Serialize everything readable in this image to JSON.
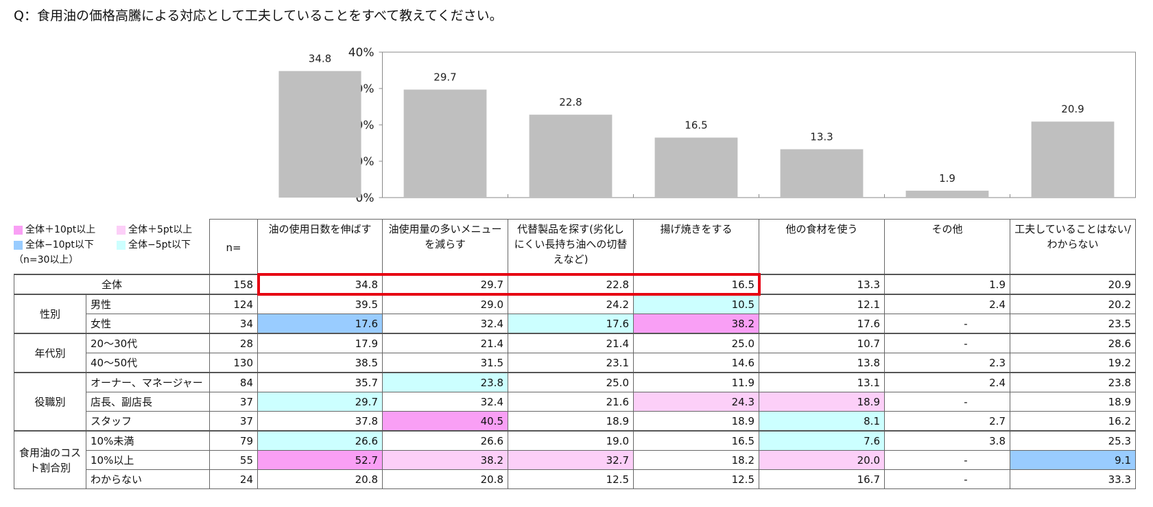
{
  "question": "Q：食用油の価格高騰による対応として工夫していることをすべて教えてください。",
  "chart_data": {
    "type": "bar",
    "categories": [
      "油の使用日数を伸ばす",
      "油使用量の多いメニューを減らす",
      "代替製品を探す(劣化しにくい長持ち油への切替えなど)",
      "揚げ焼きをする",
      "他の食材を使う",
      "その他",
      "工夫していることはない/わからない"
    ],
    "values": [
      34.8,
      29.7,
      22.8,
      16.5,
      13.3,
      1.9,
      20.9
    ],
    "value_labels": [
      "34.8",
      "29.7",
      "22.8",
      "16.5",
      "13.3",
      "1.9",
      "20.9"
    ],
    "yticks": [
      "0%",
      "10%",
      "20%",
      "30%",
      "40%"
    ],
    "ylim": [
      0,
      40
    ],
    "bar_color": "#bfbfbf"
  },
  "legend": {
    "items": [
      {
        "label": "全体＋10pt以上",
        "color": "#f99ff5"
      },
      {
        "label": "全体＋5pt以上",
        "color": "#fccff8"
      },
      {
        "label": "全体−10pt以下",
        "color": "#99ccff"
      },
      {
        "label": "全体−5pt以下",
        "color": "#ccffff"
      }
    ],
    "note": "（n=30以上）"
  },
  "table": {
    "n_header": "n=",
    "headers": [
      "油の使用日数を伸ばす",
      "油使用量の多いメニューを減らす",
      "代替製品を探す(劣化しにくい長持ち油への切替えなど)",
      "揚げ焼きをする",
      "他の食材を使う",
      "その他",
      "工夫していることはない/わからない"
    ],
    "total": {
      "label": "全体",
      "n": "158",
      "values": [
        "34.8",
        "29.7",
        "22.8",
        "16.5",
        "13.3",
        "1.9",
        "20.9"
      ]
    },
    "groups": [
      {
        "label": "性別",
        "rows": [
          {
            "label": "男性",
            "n": "124",
            "values": [
              "39.5",
              "29.0",
              "24.2",
              "10.5",
              "12.1",
              "2.4",
              "20.2"
            ],
            "hl": [
              "",
              "",
              "",
              "m5",
              "",
              "",
              ""
            ]
          },
          {
            "label": "女性",
            "n": "34",
            "values": [
              "17.6",
              "32.4",
              "17.6",
              "38.2",
              "17.6",
              "-",
              "23.5"
            ],
            "hl": [
              "m10",
              "",
              "m5",
              "p10",
              "",
              "",
              ""
            ]
          }
        ]
      },
      {
        "label": "年代別",
        "rows": [
          {
            "label": "20〜30代",
            "n": "28",
            "values": [
              "17.9",
              "21.4",
              "21.4",
              "25.0",
              "10.7",
              "-",
              "28.6"
            ],
            "hl": [
              "",
              "",
              "",
              "",
              "",
              "",
              ""
            ]
          },
          {
            "label": "40〜50代",
            "n": "130",
            "values": [
              "38.5",
              "31.5",
              "23.1",
              "14.6",
              "13.8",
              "2.3",
              "19.2"
            ],
            "hl": [
              "",
              "",
              "",
              "",
              "",
              "",
              ""
            ]
          }
        ]
      },
      {
        "label": "役職別",
        "rows": [
          {
            "label": "オーナー、マネージャー",
            "n": "84",
            "values": [
              "35.7",
              "23.8",
              "25.0",
              "11.9",
              "13.1",
              "2.4",
              "23.8"
            ],
            "hl": [
              "",
              "m5",
              "",
              "",
              "",
              "",
              ""
            ]
          },
          {
            "label": "店長、副店長",
            "n": "37",
            "values": [
              "29.7",
              "32.4",
              "21.6",
              "24.3",
              "18.9",
              "-",
              "18.9"
            ],
            "hl": [
              "m5",
              "",
              "",
              "p5",
              "p5",
              "",
              ""
            ]
          },
          {
            "label": "スタッフ",
            "n": "37",
            "values": [
              "37.8",
              "40.5",
              "18.9",
              "18.9",
              "8.1",
              "2.7",
              "16.2"
            ],
            "hl": [
              "",
              "p10",
              "",
              "",
              "m5",
              "",
              ""
            ]
          }
        ]
      },
      {
        "label": "食用油のコスト割合別",
        "rows": [
          {
            "label": "10%未満",
            "n": "79",
            "values": [
              "26.6",
              "26.6",
              "19.0",
              "16.5",
              "7.6",
              "3.8",
              "25.3"
            ],
            "hl": [
              "m5",
              "",
              "",
              "",
              "m5",
              "",
              ""
            ]
          },
          {
            "label": "10%以上",
            "n": "55",
            "values": [
              "52.7",
              "38.2",
              "32.7",
              "18.2",
              "20.0",
              "-",
              "9.1"
            ],
            "hl": [
              "p10",
              "p5",
              "p5",
              "",
              "p5",
              "",
              "m10"
            ]
          },
          {
            "label": "わからない",
            "n": "24",
            "values": [
              "20.8",
              "20.8",
              "12.5",
              "12.5",
              "16.7",
              "-",
              "33.3"
            ],
            "hl": [
              "",
              "",
              "",
              "",
              "",
              "",
              ""
            ]
          }
        ]
      }
    ]
  },
  "highlight_color": "#e60012"
}
